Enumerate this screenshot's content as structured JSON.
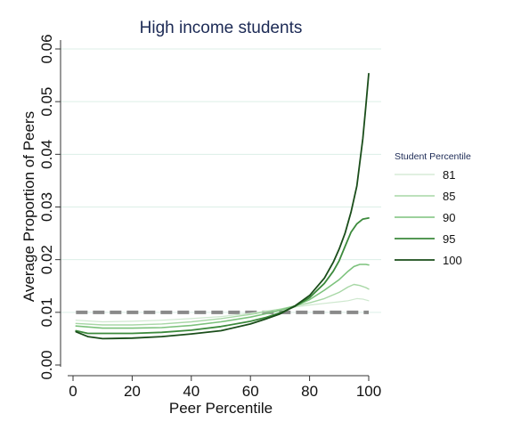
{
  "chart_data": {
    "type": "line",
    "title": "High income students",
    "xlabel": "Peer Percentile",
    "ylabel": "Average Proportion of Peers",
    "xlim": [
      0,
      100
    ],
    "ylim": [
      0,
      0.06
    ],
    "xticks": [
      0,
      20,
      40,
      60,
      80,
      100
    ],
    "xtick_labels": [
      "0",
      "20",
      "40",
      "60",
      "80",
      "100"
    ],
    "yticks": [
      0,
      0.01,
      0.02,
      0.03,
      0.04,
      0.05,
      0.06
    ],
    "ytick_labels": [
      "0.00",
      "0.01",
      "0.02",
      "0.03",
      "0.04",
      "0.05",
      "0.06"
    ],
    "grid": "horizontal",
    "legend": {
      "title": "Student Percentile",
      "placement": "right"
    },
    "reference_line": {
      "y": 0.01,
      "style": "dashed",
      "color": "#8a8a8a"
    },
    "series": [
      {
        "name": "81",
        "color": "#cfe8cf",
        "width": 1.2,
        "x": [
          1,
          10,
          20,
          30,
          40,
          50,
          60,
          65,
          70,
          75,
          80,
          85,
          90,
          93,
          96,
          98,
          100
        ],
        "y": [
          0.0085,
          0.0082,
          0.0083,
          0.0085,
          0.0088,
          0.0092,
          0.0098,
          0.0102,
          0.0106,
          0.011,
          0.0114,
          0.0117,
          0.012,
          0.0122,
          0.0126,
          0.0125,
          0.0122
        ]
      },
      {
        "name": "85",
        "color": "#a7d7a5",
        "width": 1.4,
        "x": [
          1,
          10,
          20,
          30,
          40,
          50,
          60,
          65,
          70,
          75,
          80,
          85,
          90,
          93,
          95,
          97,
          99,
          100
        ],
        "y": [
          0.0079,
          0.0076,
          0.0076,
          0.0078,
          0.0082,
          0.0088,
          0.0096,
          0.0101,
          0.0106,
          0.0112,
          0.0118,
          0.0126,
          0.0138,
          0.0148,
          0.0153,
          0.0151,
          0.0147,
          0.0144
        ]
      },
      {
        "name": "90",
        "color": "#7cc27c",
        "width": 1.6,
        "x": [
          1,
          10,
          20,
          30,
          40,
          50,
          60,
          65,
          70,
          75,
          80,
          85,
          90,
          93,
          95,
          97,
          99,
          100
        ],
        "y": [
          0.0074,
          0.007,
          0.007,
          0.0071,
          0.0075,
          0.0082,
          0.0091,
          0.0097,
          0.0104,
          0.0112,
          0.0124,
          0.0142,
          0.0162,
          0.0178,
          0.0187,
          0.0191,
          0.0191,
          0.019
        ]
      },
      {
        "name": "95",
        "color": "#3c8a3c",
        "width": 1.8,
        "x": [
          1,
          5,
          10,
          20,
          30,
          40,
          50,
          60,
          65,
          70,
          75,
          80,
          85,
          88,
          90,
          92,
          94,
          96,
          98,
          100
        ],
        "y": [
          0.0065,
          0.006,
          0.006,
          0.006,
          0.0062,
          0.0066,
          0.0073,
          0.0083,
          0.009,
          0.0099,
          0.0111,
          0.0128,
          0.0155,
          0.0178,
          0.0198,
          0.0225,
          0.0252,
          0.0268,
          0.0277,
          0.0279
        ]
      },
      {
        "name": "100",
        "color": "#1a4d1a",
        "width": 1.8,
        "x": [
          1,
          5,
          10,
          20,
          30,
          40,
          50,
          60,
          65,
          70,
          75,
          80,
          85,
          88,
          90,
          92,
          94,
          96,
          98,
          99,
          100
        ],
        "y": [
          0.0063,
          0.0054,
          0.005,
          0.0051,
          0.0054,
          0.0059,
          0.0065,
          0.0078,
          0.0087,
          0.0097,
          0.0112,
          0.0132,
          0.0165,
          0.0195,
          0.022,
          0.025,
          0.029,
          0.034,
          0.043,
          0.049,
          0.0553
        ]
      }
    ]
  }
}
